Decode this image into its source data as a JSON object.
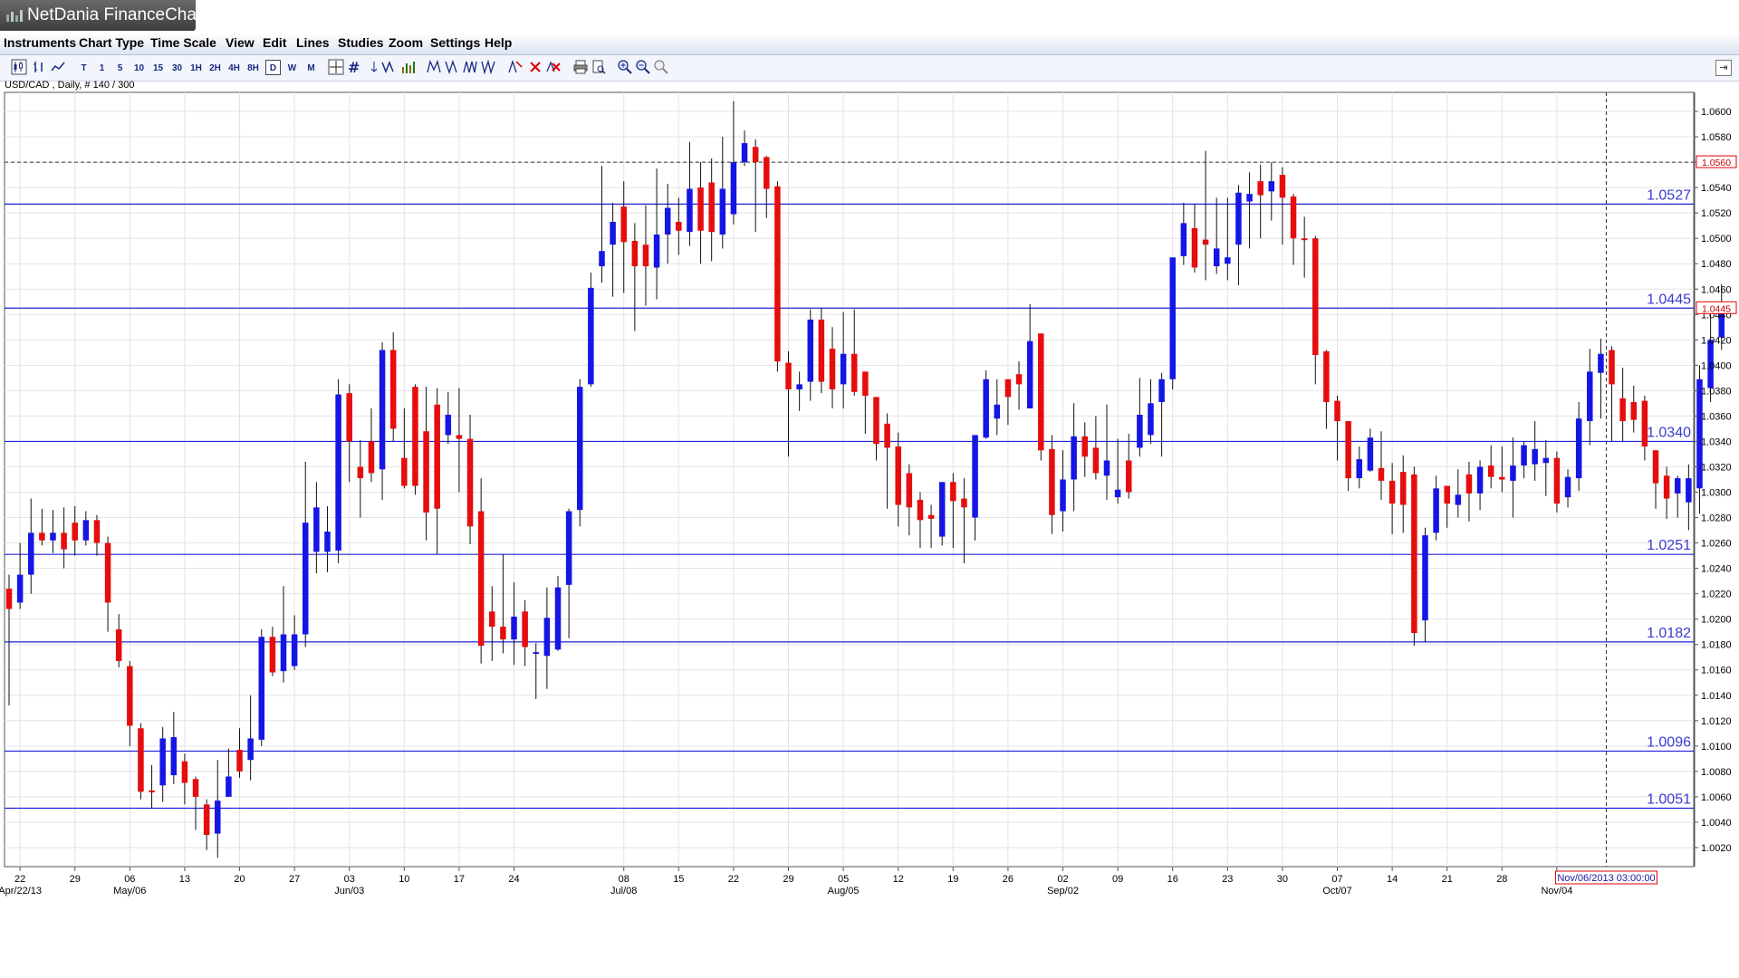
{
  "app": {
    "title": "NetDania FinanceChart"
  },
  "menu": {
    "items": [
      "Instruments",
      "Chart Type",
      "Time Scale",
      "View",
      "Edit",
      "Lines",
      "Studies",
      "Zoom",
      "Settings",
      "Help"
    ]
  },
  "toolbar": {
    "timescales": [
      "T",
      "1",
      "5",
      "10",
      "15",
      "30",
      "1H",
      "2H",
      "4H",
      "8H",
      "D",
      "W",
      "M"
    ],
    "selected": "D"
  },
  "instrument": {
    "info": "USD/CAD , Daily, # 140 / 300"
  },
  "colors": {
    "up": "#1515e6",
    "down": "#e60d0d",
    "level_line": "#2020d8",
    "level_label": "#3a3ad0",
    "grid": "#e3e3e3",
    "price_tag_border": "#e00000",
    "time_tag_border": "#e00000"
  },
  "chart_data": {
    "type": "candlestick",
    "instrument": "USD/CAD",
    "timeframe": "Daily",
    "ylim": [
      1.0005,
      1.0615
    ],
    "y_ticks": [
      "1.0600",
      "1.0580",
      "1.0560",
      "1.0540",
      "1.0520",
      "1.0500",
      "1.0480",
      "1.0460",
      "1.0440",
      "1.0420",
      "1.0400",
      "1.0380",
      "1.0360",
      "1.0340",
      "1.0320",
      "1.0300",
      "1.0280",
      "1.0260",
      "1.0240",
      "1.0220",
      "1.0200",
      "1.0180",
      "1.0160",
      "1.0140",
      "1.0120",
      "1.0100",
      "1.0080",
      "1.0060",
      "1.0040",
      "1.0020"
    ],
    "x_ticks": [
      {
        "label": "22",
        "index": 1,
        "month": "Apr/22/13"
      },
      {
        "label": "29",
        "index": 6
      },
      {
        "label": "06",
        "index": 11,
        "month": "May/06"
      },
      {
        "label": "13",
        "index": 16
      },
      {
        "label": "20",
        "index": 21
      },
      {
        "label": "27",
        "index": 26
      },
      {
        "label": "03",
        "index": 31,
        "month": "Jun/03"
      },
      {
        "label": "10",
        "index": 36
      },
      {
        "label": "17",
        "index": 41
      },
      {
        "label": "24",
        "index": 46
      },
      {
        "label": "08",
        "index": 56,
        "month": "Jul/08"
      },
      {
        "label": "15",
        "index": 61
      },
      {
        "label": "22",
        "index": 66
      },
      {
        "label": "29",
        "index": 71
      },
      {
        "label": "05",
        "index": 76,
        "month": "Aug/05"
      },
      {
        "label": "12",
        "index": 81
      },
      {
        "label": "19",
        "index": 86
      },
      {
        "label": "26",
        "index": 91
      },
      {
        "label": "02",
        "index": 96,
        "month": "Sep/02"
      },
      {
        "label": "09",
        "index": 101
      },
      {
        "label": "16",
        "index": 106
      },
      {
        "label": "23",
        "index": 111
      },
      {
        "label": "30",
        "index": 116
      },
      {
        "label": "07",
        "index": 121,
        "month": "Oct/07"
      },
      {
        "label": "14",
        "index": 126
      },
      {
        "label": "21",
        "index": 131
      },
      {
        "label": "28",
        "index": 136
      },
      {
        "label": "",
        "index": 141,
        "month": "Nov/04"
      }
    ],
    "levels": [
      {
        "value": 1.0527,
        "label": "1.0527"
      },
      {
        "value": 1.0445,
        "label": "1.0445"
      },
      {
        "value": 1.034,
        "label": "1.0340"
      },
      {
        "value": 1.0251,
        "label": "1.0251"
      },
      {
        "value": 1.0182,
        "label": "1.0182"
      },
      {
        "value": 1.0096,
        "label": "1.0096"
      },
      {
        "value": 1.0051,
        "label": "1.0051"
      }
    ],
    "crosshair_price": "1.0560",
    "current_price": "1.0445",
    "crosshair_time": "Nov/06/2013 03:00:00",
    "crosshair_index": 145.5,
    "candles": [
      [
        1.0224,
        1.0208,
        1.0235,
        1.0132
      ],
      [
        1.0213,
        1.0235,
        1.026,
        1.0208
      ],
      [
        1.0235,
        1.0268,
        1.0295,
        1.022
      ],
      [
        1.0268,
        1.0262,
        1.0287,
        1.0258
      ],
      [
        1.0262,
        1.0268,
        1.0286,
        1.0252
      ],
      [
        1.0268,
        1.0255,
        1.0288,
        1.024
      ],
      [
        1.0276,
        1.0262,
        1.0289,
        1.025
      ],
      [
        1.0262,
        1.0278,
        1.0285,
        1.0258
      ],
      [
        1.0278,
        1.026,
        1.0282,
        1.025
      ],
      [
        1.026,
        1.0213,
        1.0265,
        1.019
      ],
      [
        1.0192,
        1.0167,
        1.0204,
        1.0162
      ],
      [
        1.0163,
        1.0116,
        1.0167,
        1.01
      ],
      [
        1.0114,
        1.0064,
        1.0118,
        1.0058
      ],
      [
        1.0065,
        1.0064,
        1.0085,
        1.0051
      ],
      [
        1.0069,
        1.0106,
        1.0115,
        1.0056
      ],
      [
        1.0077,
        1.0107,
        1.0127,
        1.007
      ],
      [
        1.0088,
        1.0071,
        1.0094,
        1.0054
      ],
      [
        1.0074,
        1.006,
        1.0076,
        1.0034
      ],
      [
        1.0054,
        1.003,
        1.0058,
        1.0018
      ],
      [
        1.0031,
        1.0057,
        1.0089,
        1.0012
      ],
      [
        1.006,
        1.0076,
        1.0098,
        1.0065
      ],
      [
        1.0097,
        1.008,
        1.0114,
        1.0075
      ],
      [
        1.0089,
        1.0106,
        1.014,
        1.0073
      ],
      [
        1.0105,
        1.0186,
        1.0192,
        1.01
      ],
      [
        1.0186,
        1.0158,
        1.0194,
        1.0155
      ],
      [
        1.0159,
        1.0188,
        1.0226,
        1.015
      ],
      [
        1.0163,
        1.0188,
        1.0203,
        1.016
      ],
      [
        1.0188,
        1.0276,
        1.0324,
        1.0178
      ],
      [
        1.0253,
        1.0288,
        1.0308,
        1.0236
      ],
      [
        1.0253,
        1.0269,
        1.0289,
        1.0237
      ],
      [
        1.0254,
        1.0377,
        1.0389,
        1.0244
      ],
      [
        1.0378,
        1.034,
        1.0385,
        1.0308
      ],
      [
        1.032,
        1.0311,
        1.0341,
        1.028
      ],
      [
        1.034,
        1.0315,
        1.0366,
        1.0308
      ],
      [
        1.0318,
        1.0412,
        1.0418,
        1.0294
      ],
      [
        1.0412,
        1.035,
        1.0426,
        1.034
      ],
      [
        1.0327,
        1.0305,
        1.0366,
        1.0303
      ],
      [
        1.0383,
        1.0305,
        1.0385,
        1.0298
      ],
      [
        1.0348,
        1.0284,
        1.0383,
        1.0262
      ],
      [
        1.0369,
        1.0287,
        1.0382,
        1.0251
      ],
      [
        1.0345,
        1.0361,
        1.0379,
        1.0338
      ],
      [
        1.0345,
        1.0342,
        1.0382,
        1.03
      ],
      [
        1.0342,
        1.0273,
        1.0361,
        1.0259
      ],
      [
        1.0285,
        1.0179,
        1.0311,
        1.0165
      ],
      [
        1.0206,
        1.0194,
        1.0226,
        1.0167
      ],
      [
        1.0194,
        1.0184,
        1.0251,
        1.0173
      ],
      [
        1.0184,
        1.0202,
        1.0229,
        1.0164
      ],
      [
        1.0206,
        1.0178,
        1.0215,
        1.0163
      ],
      [
        1.0174,
        1.0174,
        1.0181,
        1.0137
      ],
      [
        1.0171,
        1.0201,
        1.0225,
        1.0145
      ],
      [
        1.0176,
        1.0225,
        1.0234,
        1.0175
      ],
      [
        1.0227,
        1.0285,
        1.0287,
        1.0185
      ],
      [
        1.0286,
        1.0383,
        1.0389,
        1.0273
      ],
      [
        1.0385,
        1.0461,
        1.0473,
        1.0383
      ],
      [
        1.0478,
        1.049,
        1.0557,
        1.0465
      ],
      [
        1.0495,
        1.0513,
        1.0528,
        1.0454
      ],
      [
        1.0525,
        1.0497,
        1.0545,
        1.0457
      ],
      [
        1.0498,
        1.0478,
        1.0512,
        1.0427
      ],
      [
        1.0495,
        1.0478,
        1.0526,
        1.0447
      ],
      [
        1.0477,
        1.0503,
        1.0555,
        1.0452
      ],
      [
        1.0503,
        1.0524,
        1.0543,
        1.048
      ],
      [
        1.0513,
        1.0506,
        1.0532,
        1.0487
      ],
      [
        1.0505,
        1.0539,
        1.0576,
        1.0494
      ],
      [
        1.054,
        1.0506,
        1.056,
        1.048
      ],
      [
        1.0544,
        1.0505,
        1.0563,
        1.0482
      ],
      [
        1.0503,
        1.0539,
        1.058,
        1.0492
      ],
      [
        1.0519,
        1.056,
        1.0608,
        1.0511
      ],
      [
        1.056,
        1.0575,
        1.0585,
        1.0557
      ],
      [
        1.0572,
        1.056,
        1.0578,
        1.0505
      ],
      [
        1.0564,
        1.0539,
        1.0565,
        1.0516
      ],
      [
        1.0541,
        1.0403,
        1.0545,
        1.0395
      ],
      [
        1.0402,
        1.0381,
        1.0411,
        1.0328
      ],
      [
        1.0381,
        1.0385,
        1.0395,
        1.0364
      ],
      [
        1.0387,
        1.0436,
        1.0444,
        1.0372
      ],
      [
        1.0436,
        1.0387,
        1.0445,
        1.0378
      ],
      [
        1.0413,
        1.0381,
        1.043,
        1.0366
      ],
      [
        1.0385,
        1.0409,
        1.0442,
        1.0366
      ],
      [
        1.0409,
        1.0379,
        1.0444,
        1.0376
      ],
      [
        1.0395,
        1.0376,
        1.0395,
        1.0346
      ],
      [
        1.0375,
        1.0338,
        1.0375,
        1.0325
      ],
      [
        1.0354,
        1.0335,
        1.0362,
        1.0287
      ],
      [
        1.0336,
        1.029,
        1.0347,
        1.0273
      ],
      [
        1.0315,
        1.0288,
        1.0322,
        1.0266
      ],
      [
        1.0294,
        1.0278,
        1.03,
        1.0256
      ],
      [
        1.0282,
        1.0279,
        1.029,
        1.0256
      ],
      [
        1.0265,
        1.0308,
        1.0308,
        1.0258
      ],
      [
        1.0308,
        1.0293,
        1.0315,
        1.0256
      ],
      [
        1.0295,
        1.0288,
        1.0311,
        1.0244
      ],
      [
        1.028,
        1.0345,
        1.0345,
        1.0262
      ],
      [
        1.0343,
        1.0389,
        1.0396,
        1.0342
      ],
      [
        1.0358,
        1.0369,
        1.0389,
        1.0345
      ],
      [
        1.0389,
        1.0375,
        1.0389,
        1.0353
      ],
      [
        1.0393,
        1.0385,
        1.0403,
        1.0365
      ],
      [
        1.0366,
        1.0419,
        1.0448,
        1.0366
      ],
      [
        1.0425,
        1.0333,
        1.0425,
        1.0325
      ],
      [
        1.0334,
        1.0282,
        1.0345,
        1.0267
      ],
      [
        1.0285,
        1.031,
        1.0333,
        1.0269
      ],
      [
        1.031,
        1.0344,
        1.037,
        1.0285
      ],
      [
        1.0344,
        1.0328,
        1.0355,
        1.0312
      ],
      [
        1.0335,
        1.0315,
        1.036,
        1.031
      ],
      [
        1.0313,
        1.0325,
        1.0369,
        1.0294
      ],
      [
        1.0296,
        1.0302,
        1.0342,
        1.0291
      ],
      [
        1.0325,
        1.03,
        1.0346,
        1.0295
      ],
      [
        1.0335,
        1.0361,
        1.039,
        1.0328
      ],
      [
        1.0345,
        1.037,
        1.0389,
        1.0338
      ],
      [
        1.0371,
        1.0389,
        1.0394,
        1.0328
      ],
      [
        1.0389,
        1.0485,
        1.0485,
        1.0381
      ],
      [
        1.0486,
        1.0512,
        1.0528,
        1.0479
      ],
      [
        1.0508,
        1.0477,
        1.0527,
        1.0473
      ],
      [
        1.0499,
        1.0495,
        1.0569,
        1.0467
      ],
      [
        1.0478,
        1.0492,
        1.0532,
        1.0472
      ],
      [
        1.048,
        1.0485,
        1.0532,
        1.0467
      ],
      [
        1.0495,
        1.0536,
        1.0542,
        1.0463
      ],
      [
        1.0529,
        1.0535,
        1.0552,
        1.0492
      ],
      [
        1.0545,
        1.0534,
        1.0558,
        1.05
      ],
      [
        1.0537,
        1.0545,
        1.056,
        1.0514
      ],
      [
        1.055,
        1.0532,
        1.0556,
        1.0495
      ],
      [
        1.0533,
        1.05,
        1.0535,
        1.0479
      ],
      [
        1.05,
        1.0499,
        1.0517,
        1.0469
      ],
      [
        1.05,
        1.0408,
        1.0502,
        1.0385
      ],
      [
        1.0411,
        1.0371,
        1.0412,
        1.035
      ],
      [
        1.0372,
        1.0356,
        1.0376,
        1.0325
      ],
      [
        1.0356,
        1.0311,
        1.0356,
        1.0301
      ],
      [
        1.0311,
        1.0326,
        1.0336,
        1.0303
      ],
      [
        1.0317,
        1.0343,
        1.035,
        1.0316
      ],
      [
        1.0319,
        1.0309,
        1.0348,
        1.0294
      ],
      [
        1.0309,
        1.0291,
        1.0323,
        1.0267
      ],
      [
        1.0316,
        1.029,
        1.0329,
        1.0268
      ],
      [
        1.0314,
        1.0189,
        1.032,
        1.0179
      ],
      [
        1.0199,
        1.0266,
        1.0272,
        1.0182
      ],
      [
        1.0268,
        1.0303,
        1.0313,
        1.0262
      ],
      [
        1.0305,
        1.0291,
        1.0305,
        1.0272
      ],
      [
        1.029,
        1.0298,
        1.0318,
        1.028
      ],
      [
        1.0314,
        1.0299,
        1.0324,
        1.0277
      ],
      [
        1.0299,
        1.032,
        1.0325,
        1.0286
      ],
      [
        1.0321,
        1.0312,
        1.0337,
        1.0303
      ],
      [
        1.0312,
        1.031,
        1.0336,
        1.03
      ],
      [
        1.0309,
        1.0321,
        1.0343,
        1.028
      ],
      [
        1.0321,
        1.0337,
        1.034,
        1.0311
      ],
      [
        1.0322,
        1.0334,
        1.0356,
        1.0309
      ],
      [
        1.0323,
        1.0327,
        1.0341,
        1.0297
      ],
      [
        1.0327,
        1.0291,
        1.0332,
        1.0284
      ],
      [
        1.0296,
        1.0312,
        1.0318,
        1.0288
      ],
      [
        1.0311,
        1.0358,
        1.0371,
        1.0301
      ],
      [
        1.0356,
        1.0395,
        1.0413,
        1.0337
      ],
      [
        1.0394,
        1.0409,
        1.0421,
        1.0358
      ],
      [
        1.0412,
        1.0385,
        1.0415,
        1.034
      ],
      [
        1.0374,
        1.0356,
        1.0398,
        1.034
      ],
      [
        1.0371,
        1.0357,
        1.0384,
        1.0347
      ],
      [
        1.0372,
        1.0336,
        1.0376,
        1.0325
      ],
      [
        1.0333,
        1.0307,
        1.0333,
        1.0287
      ],
      [
        1.0313,
        1.0295,
        1.032,
        1.0279
      ],
      [
        1.0299,
        1.0311,
        1.0313,
        1.028
      ],
      [
        1.0292,
        1.0311,
        1.0322,
        1.027
      ],
      [
        1.0303,
        1.0389,
        1.04,
        1.0283
      ],
      [
        1.0382,
        1.042,
        1.044,
        1.0371
      ],
      [
        1.0422,
        1.0449,
        1.0464,
        1.0412
      ]
    ]
  }
}
